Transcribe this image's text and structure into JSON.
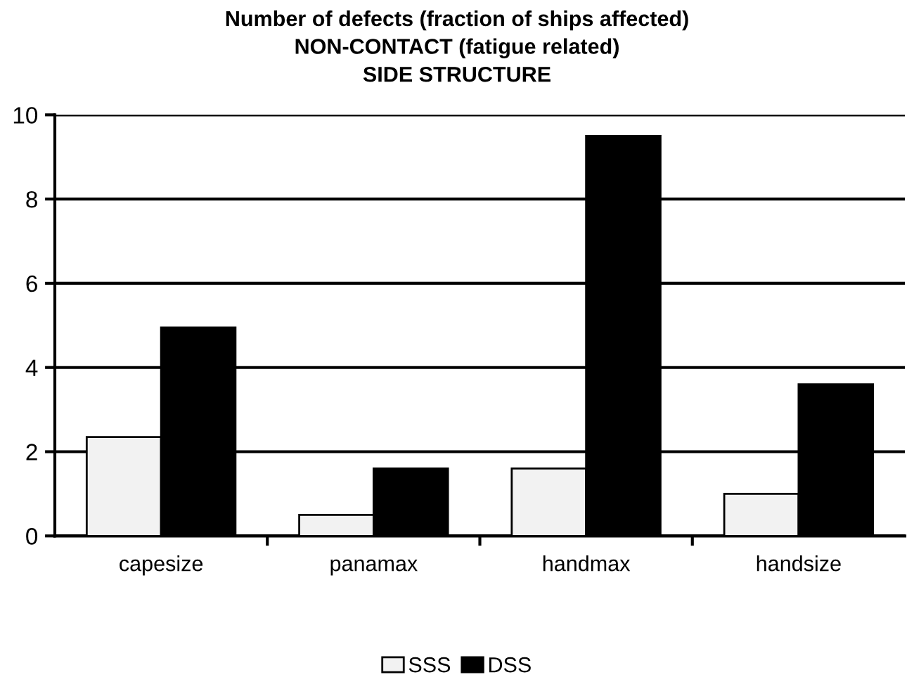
{
  "chart_data": {
    "type": "bar",
    "title": "Number of defects (fraction of ships affected)\nNON-CONTACT (fatigue related)\nSIDE STRUCTURE",
    "categories": [
      "capesize",
      "panamax",
      "handmax",
      "handsize"
    ],
    "series": [
      {
        "name": "SSS",
        "color": "#f2f2f2",
        "values": [
          2.35,
          0.5,
          1.6,
          1.0
        ]
      },
      {
        "name": "DSS",
        "color": "#000000",
        "values": [
          4.95,
          1.6,
          9.5,
          3.6
        ]
      }
    ],
    "ylim": [
      0,
      10
    ],
    "yticks": [
      0,
      2,
      4,
      6,
      8,
      10
    ],
    "grid": "y",
    "legend": "bottom"
  }
}
